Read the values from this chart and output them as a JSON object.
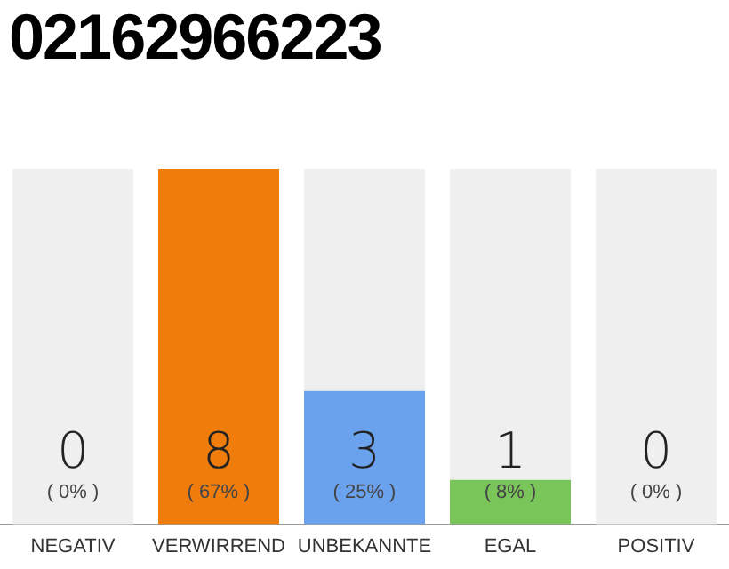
{
  "chart_data": {
    "type": "bar",
    "title": "02162966223",
    "categories": [
      "NEGATIV",
      "VERWIRREND",
      "UNBEKANNTE",
      "EGAL",
      "POSITIV"
    ],
    "values": [
      0,
      8,
      3,
      1,
      0
    ],
    "colors": [
      "#f07c0c",
      "#f07c0c",
      "#6ba2ee",
      "#7ac55a",
      "#f07c0c"
    ],
    "data_labels": true,
    "bands": [
      {
        "axis": "x",
        "from": "NEGATIV",
        "to": "NEGATIV",
        "color": "#efefef"
      },
      {
        "axis": "x",
        "from": "UNBEKANNTE",
        "to": "UNBEKANNTE",
        "color": "#efefef"
      },
      {
        "axis": "x",
        "from": "EGAL",
        "to": "EGAL",
        "color": "#efefef"
      },
      {
        "axis": "x",
        "from": "POSITIV",
        "to": "POSITIV",
        "color": "#efefef"
      }
    ],
    "annotations": [
      "( 0% )",
      "( 67% )",
      "( 25% )",
      "( 8% )",
      "( 0% )"
    ],
    "grid": false,
    "legend": false
  }
}
